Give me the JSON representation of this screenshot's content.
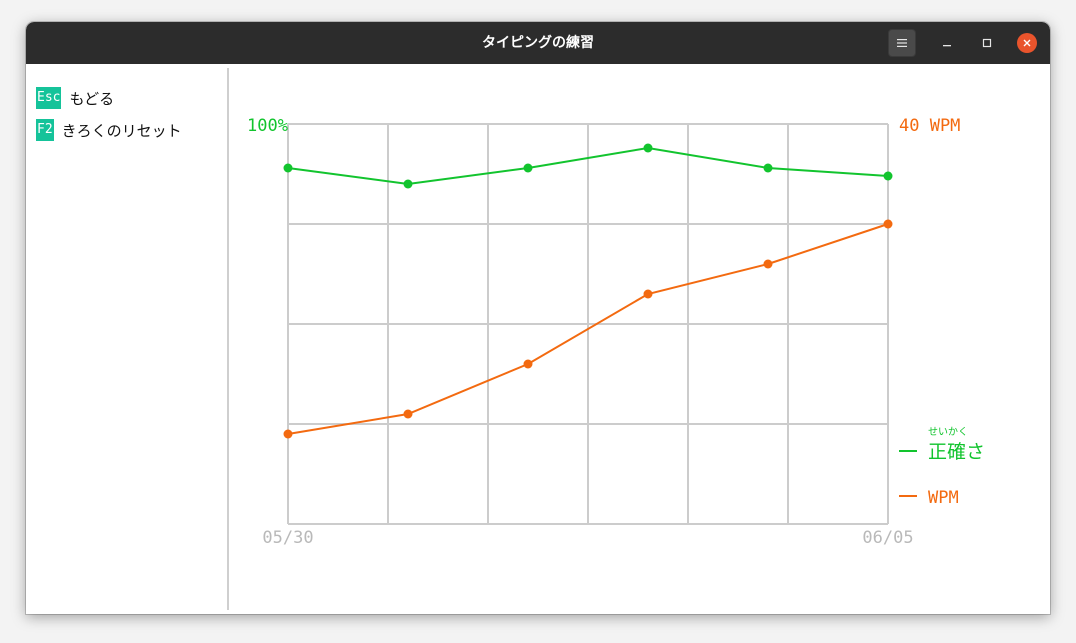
{
  "window": {
    "title": "タイピングの練習"
  },
  "titlebar": {
    "menu_icon": "hamburger-menu-icon",
    "minimize_icon": "minimize-icon",
    "maximize_icon": "maximize-icon",
    "close_icon": "close-icon"
  },
  "sidebar": {
    "shortcuts": [
      {
        "key": "Esc",
        "label": "もどる"
      },
      {
        "key": "F2",
        "label": "きろくのリセット"
      }
    ]
  },
  "colors": {
    "accuracy": "#12c42e",
    "wpm": "#f36a10",
    "grid": "#cccccc",
    "date_label": "#b9b9b9",
    "key_bg": "#15c39a"
  },
  "chart_data": {
    "type": "line",
    "left_axis_label": "100%",
    "right_axis_label": "40 WPM",
    "x_labels": [
      "05/30",
      "06/05"
    ],
    "ylim_left": [
      0,
      100
    ],
    "ylim_right": [
      0,
      40
    ],
    "grid": true,
    "legend_placement": "right",
    "series": [
      {
        "name": "正確さ",
        "ruby": "せいかく",
        "axis": "left",
        "values": [
          89,
          85,
          89,
          94,
          89,
          87
        ]
      },
      {
        "name": "WPM",
        "axis": "right",
        "values": [
          9,
          11,
          16,
          23,
          26,
          30
        ]
      }
    ]
  }
}
